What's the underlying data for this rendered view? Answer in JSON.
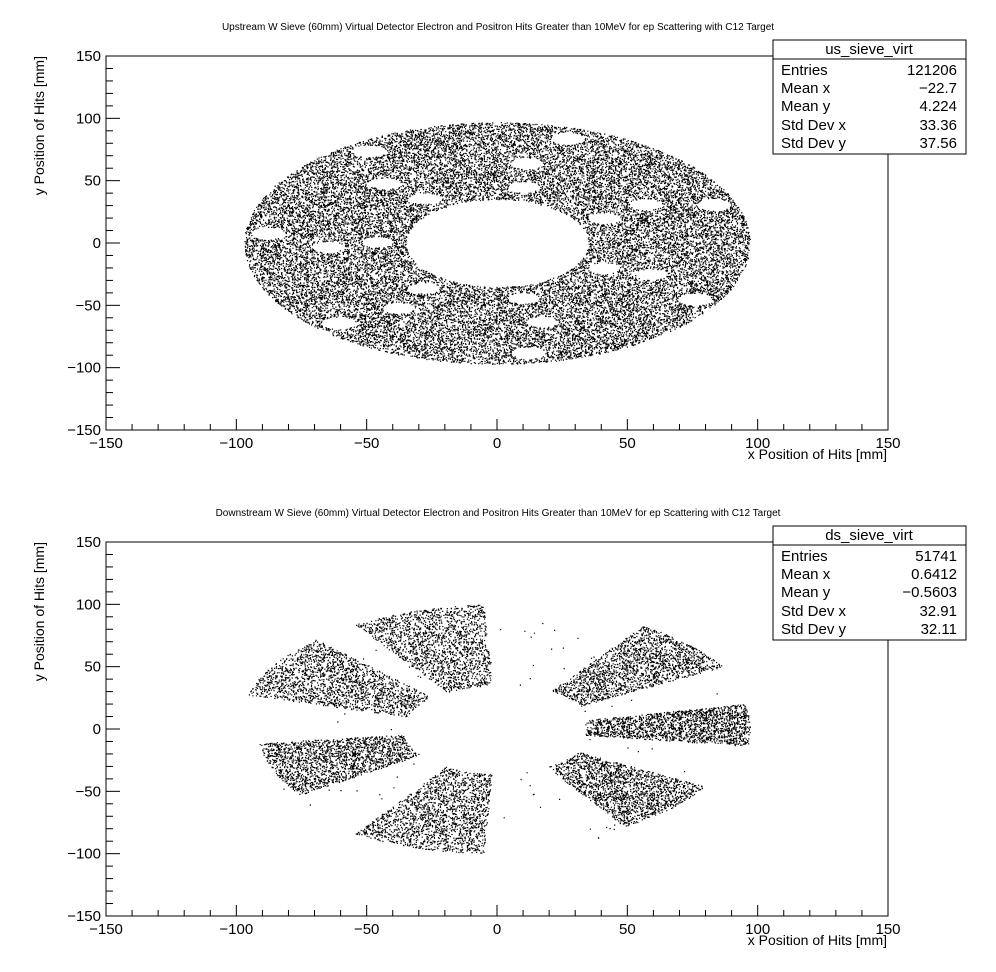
{
  "chart_data": [
    {
      "type": "scatter",
      "title": "Upstream W Sieve (60mm) Virtual Detector Electron and Positron Hits Greater than 10MeV for ep Scattering with C12 Target",
      "xlabel": "x Position of Hits [mm]",
      "ylabel": "y Position of Hits [mm]",
      "xlim": [
        -150,
        150
      ],
      "ylim": [
        -150,
        150
      ],
      "xticks": [
        -150,
        -100,
        -50,
        0,
        50,
        100,
        150
      ],
      "yticks": [
        -150,
        -100,
        -50,
        0,
        50,
        100,
        150
      ],
      "xtick_labels": [
        "−150",
        "−100",
        "−50",
        "0",
        "50",
        "100",
        "150"
      ],
      "ytick_labels": [
        "−150",
        "−100",
        "−50",
        "0",
        "50",
        "100",
        "150"
      ],
      "grid": false,
      "legend_position": "top-right",
      "stats": {
        "name": "us_sieve_virt",
        "rows": [
          {
            "label": "Entries",
            "value": "121206"
          },
          {
            "label": "Mean x",
            "value": "−22.7"
          },
          {
            "label": "Mean y",
            "value": "4.224"
          },
          {
            "label": "Std Dev x",
            "value": "33.36"
          },
          {
            "label": "Std Dev y",
            "value": "37.56"
          }
        ]
      },
      "distribution": {
        "kind": "annulus_with_holes",
        "center": [
          0,
          0
        ],
        "outer_radius_x": 97,
        "outer_radius_y": 97,
        "inner_radius_x": 35,
        "inner_radius_y": 35,
        "holes": [
          {
            "x": -88,
            "y": 8,
            "r": 6.5
          },
          {
            "x": -65,
            "y": -3,
            "r": 6
          },
          {
            "x": -61,
            "y": -64,
            "r": 6.5
          },
          {
            "x": -49,
            "y": 74,
            "r": 6.5
          },
          {
            "x": -43,
            "y": 48,
            "r": 6
          },
          {
            "x": -46,
            "y": 1,
            "r": 6
          },
          {
            "x": -38,
            "y": -52,
            "r": 6
          },
          {
            "x": -28,
            "y": 36,
            "r": 6
          },
          {
            "x": -28,
            "y": -36,
            "r": 6
          },
          {
            "x": 27,
            "y": 84,
            "r": 6.5
          },
          {
            "x": 11,
            "y": 64,
            "r": 6
          },
          {
            "x": 10,
            "y": 45,
            "r": 6
          },
          {
            "x": 10,
            "y": -44,
            "r": 6
          },
          {
            "x": 17,
            "y": -63,
            "r": 6
          },
          {
            "x": 12,
            "y": -88,
            "r": 6.5
          },
          {
            "x": 41,
            "y": 20,
            "r": 6
          },
          {
            "x": 57,
            "y": 31,
            "r": 6
          },
          {
            "x": 41,
            "y": -20,
            "r": 6
          },
          {
            "x": 59,
            "y": -25,
            "r": 6
          },
          {
            "x": 83,
            "y": 31,
            "r": 6.5
          },
          {
            "x": 76,
            "y": -45,
            "r": 6.5
          }
        ],
        "n_points": 26000
      }
    },
    {
      "type": "scatter",
      "title": "Downstream W Sieve (60mm) Virtual Detector Electron and Positron Hits Greater than 10MeV for ep Scattering with C12 Target",
      "xlabel": "x Position of Hits [mm]",
      "ylabel": "y Position of Hits [mm]",
      "xlim": [
        -150,
        150
      ],
      "ylim": [
        -150,
        150
      ],
      "xticks": [
        -150,
        -100,
        -50,
        0,
        50,
        100,
        150
      ],
      "yticks": [
        -150,
        -100,
        -50,
        0,
        50,
        100,
        150
      ],
      "xtick_labels": [
        "−150",
        "−100",
        "−50",
        "0",
        "50",
        "100",
        "150"
      ],
      "ytick_labels": [
        "−150",
        "−100",
        "−50",
        "0",
        "50",
        "100",
        "150"
      ],
      "grid": false,
      "legend_position": "top-right",
      "stats": {
        "name": "ds_sieve_virt",
        "rows": [
          {
            "label": "Entries",
            "value": "51741"
          },
          {
            "label": "Mean x",
            "value": "0.6412"
          },
          {
            "label": "Mean y",
            "value": "−0.5603"
          },
          {
            "label": "Std Dev x",
            "value": "32.91"
          },
          {
            "label": "Std Dev y",
            "value": "32.11"
          }
        ]
      },
      "distribution": {
        "kind": "wedges",
        "inner_radius_x": 34,
        "inner_radius_y": 31,
        "wedges": [
          {
            "center_deg": 2,
            "half_width_deg": 10,
            "r_min": 34,
            "r_max": 97
          },
          {
            "center_deg": 43,
            "half_width_deg": 13,
            "r_min": 37,
            "r_max": 100
          },
          {
            "center_deg": 108,
            "half_width_deg": 15,
            "r_min": 35,
            "r_max": 100
          },
          {
            "center_deg": 149,
            "half_width_deg": 15,
            "r_min": 36,
            "r_max": 100
          },
          {
            "center_deg": 201,
            "half_width_deg": 14,
            "r_min": 36,
            "r_max": 92
          },
          {
            "center_deg": 252,
            "half_width_deg": 15,
            "r_min": 36,
            "r_max": 100
          },
          {
            "center_deg": 316,
            "half_width_deg": 14,
            "r_min": 36,
            "r_max": 92
          }
        ],
        "n_points": 13500
      }
    }
  ]
}
